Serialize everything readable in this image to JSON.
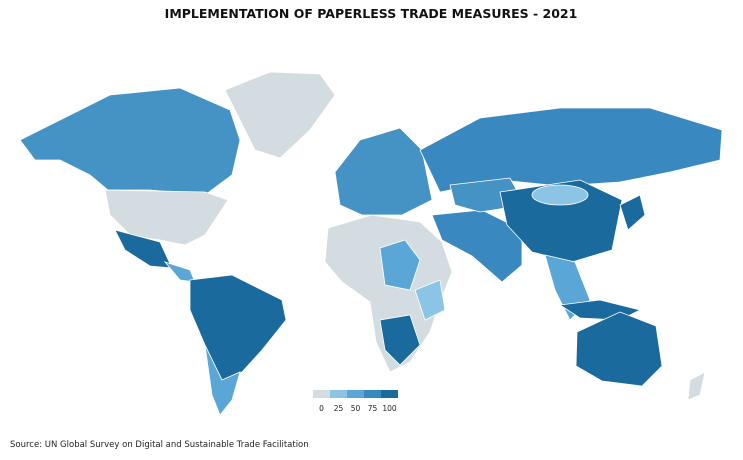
{
  "title": "IMPLEMENTATION OF PAPERLESS TRADE MEASURES - 2021",
  "legend": {
    "colors": [
      "#d3dce1",
      "#8cc4e6",
      "#5aa6d6",
      "#3a88c0",
      "#1a6a9e"
    ],
    "labels": [
      0,
      25,
      50,
      75,
      100
    ]
  },
  "source": "Source: UN Global Survey on Digital and Sustainable Trade Facilitation"
}
